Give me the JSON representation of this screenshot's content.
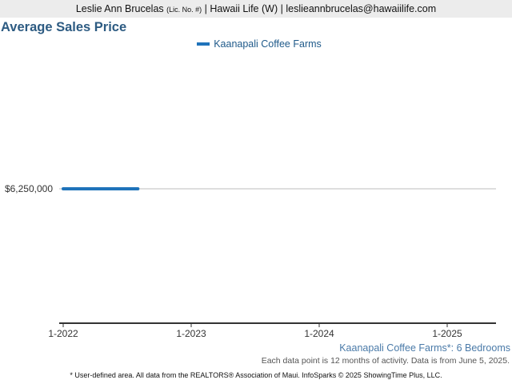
{
  "header": {
    "agent_name": "Leslie Ann Brucelas",
    "license": "(Lic. No. #)",
    "company": "Hawaii Life (W)",
    "email": "leslieannbrucelas@hawaiilife.com",
    "separator": "|"
  },
  "colors": {
    "series": "#1f73ba",
    "title": "#2d5b82",
    "header_bg": "#ececec"
  },
  "chart_data": {
    "type": "line",
    "title": "Average Sales Price",
    "xlabel": "",
    "ylabel": "",
    "x_ticks": [
      "1-2022",
      "1-2023",
      "1-2024",
      "1-2025"
    ],
    "y_ticks": [
      "$6,250,000"
    ],
    "y_reference": 6250000,
    "grid": true,
    "legend_position": "top",
    "series": [
      {
        "name": "Kaanapali Coffee Farms",
        "color": "#1f73ba",
        "points": [
          {
            "x": "1-2022",
            "y": 6250000
          },
          {
            "x": "8-2022",
            "y": 6250000
          }
        ]
      }
    ]
  },
  "footer": {
    "region": "Kaanapali Coffee Farms*: 6 Bedrooms",
    "note": "Each data point is 12 months of activity. Data is from June 5, 2025.",
    "disclaimer": "* User-defined area. All data from the REALTORS® Association of Maui. InfoSparks © 2025 ShowingTime Plus, LLC."
  }
}
